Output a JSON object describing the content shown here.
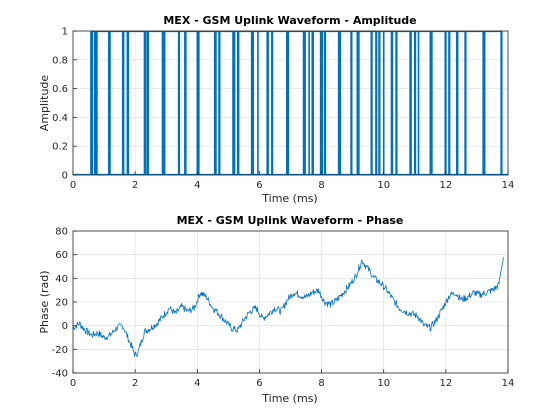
{
  "colors": {
    "series": "#0072bd",
    "grid": "#dcdcdc",
    "axes": "#262626"
  },
  "chart_data": [
    {
      "type": "line",
      "title": "MEX - GSM Uplink Waveform - Amplitude",
      "xlabel": "Time (ms)",
      "ylabel": "Amplitude",
      "xlim": [
        0,
        14
      ],
      "ylim": [
        0,
        1
      ],
      "xticks": [
        "0",
        "2",
        "4",
        "6",
        "8",
        "10",
        "12",
        "14"
      ],
      "yticks": [
        "0",
        "0.2",
        "0.4",
        "0.6",
        "0.8",
        "1"
      ],
      "grid": true,
      "series": [
        {
          "x": [
            0.577,
            0.6,
            0.62,
            0.7,
            0.75,
            0.77,
            1.15,
            1.17,
            1.19,
            1.6,
            1.63,
            1.75,
            1.78,
            2.3,
            2.32,
            2.34,
            2.4,
            2.42,
            2.88,
            2.91,
            2.95,
            3.4,
            3.42,
            3.6,
            3.63,
            4.0,
            4.03,
            4.05,
            4.56,
            4.58,
            4.6,
            4.7,
            4.72,
            5.15,
            5.17,
            5.2,
            5.3,
            5.33,
            5.75,
            5.77,
            5.8,
            5.95,
            6.25,
            6.28,
            6.4,
            6.42,
            6.88,
            6.9,
            6.93,
            7.42,
            7.45,
            7.47,
            7.6,
            7.7,
            7.73,
            7.97,
            8.0,
            8.02,
            8.1,
            8.12,
            8.55,
            8.58,
            8.6,
            8.95,
            8.97,
            9.15,
            9.18,
            9.2,
            9.6,
            9.62,
            9.75,
            9.77,
            9.85,
            9.87,
            10.0,
            10.25,
            10.28,
            10.4,
            10.42,
            10.85,
            10.88,
            11.0,
            11.02,
            11.12,
            11.5,
            11.52,
            11.55,
            11.98,
            12.0,
            12.1,
            12.12,
            12.35,
            12.38,
            12.62,
            12.64,
            13.2,
            13.23,
            13.25,
            13.78,
            13.8
          ],
          "y_note": "each listed x is a burst edge; amplitude switches between 0 and 1",
          "y": [
            1,
            1,
            1,
            1,
            1,
            1,
            1,
            1,
            1,
            1,
            1,
            1,
            1,
            1,
            1,
            1,
            1,
            1,
            1,
            1,
            1,
            1,
            1,
            1,
            1,
            1,
            1,
            1,
            1,
            1,
            1,
            1,
            1,
            1,
            1,
            1,
            1,
            1,
            1,
            1,
            1,
            1,
            1,
            1,
            1,
            1,
            1,
            1,
            1,
            1,
            1,
            1,
            1,
            1,
            1,
            1,
            1,
            1,
            1,
            1,
            1,
            1,
            1,
            1,
            1,
            1,
            1,
            1,
            1,
            1,
            1,
            1,
            1,
            1,
            1,
            1,
            1,
            1,
            1,
            1,
            1,
            1,
            1,
            1,
            1,
            1,
            1,
            1,
            1,
            1,
            1,
            1,
            1,
            1,
            1,
            1,
            1,
            1,
            1,
            1
          ]
        }
      ]
    },
    {
      "type": "line",
      "title": "MEX - GSM Uplink Waveform - Phase",
      "xlabel": "Time (ms)",
      "ylabel": "Phase (rad)",
      "xlim": [
        0,
        14
      ],
      "ylim": [
        -40,
        80
      ],
      "xticks": [
        "0",
        "2",
        "4",
        "6",
        "8",
        "10",
        "12",
        "14"
      ],
      "yticks": [
        "-40",
        "-20",
        "0",
        "20",
        "40",
        "60",
        "80"
      ],
      "grid": true,
      "series": [
        {
          "x": [
            0,
            0.2,
            0.4,
            0.6,
            0.8,
            1.0,
            1.2,
            1.4,
            1.6,
            1.8,
            2.0,
            2.1,
            2.3,
            2.5,
            2.7,
            2.9,
            3.1,
            3.3,
            3.5,
            3.7,
            3.9,
            4.1,
            4.3,
            4.5,
            4.7,
            4.9,
            5.1,
            5.3,
            5.5,
            5.7,
            5.9,
            6.1,
            6.3,
            6.5,
            6.7,
            6.9,
            7.1,
            7.3,
            7.5,
            7.7,
            7.9,
            8.1,
            8.3,
            8.5,
            8.7,
            8.9,
            9.1,
            9.3,
            9.5,
            9.7,
            9.9,
            10.1,
            10.3,
            10.5,
            10.7,
            10.9,
            11.1,
            11.3,
            11.5,
            11.7,
            11.9,
            12.1,
            12.3,
            12.5,
            12.7,
            12.9,
            13.1,
            13.3,
            13.5,
            13.7,
            13.85
          ],
          "y": [
            -2,
            2,
            -4,
            -8,
            -6,
            -10,
            -8,
            -2,
            0,
            -12,
            -25,
            -22,
            -5,
            -2,
            2,
            8,
            15,
            10,
            16,
            12,
            15,
            28,
            24,
            15,
            10,
            4,
            -2,
            -4,
            5,
            12,
            15,
            6,
            10,
            15,
            12,
            22,
            28,
            26,
            24,
            28,
            30,
            20,
            18,
            22,
            28,
            34,
            42,
            55,
            48,
            40,
            36,
            30,
            22,
            15,
            12,
            10,
            8,
            0,
            -2,
            5,
            15,
            25,
            28,
            22,
            24,
            28,
            26,
            28,
            30,
            34,
            58
          ],
          "noise_amplitude": 3
        }
      ]
    }
  ]
}
